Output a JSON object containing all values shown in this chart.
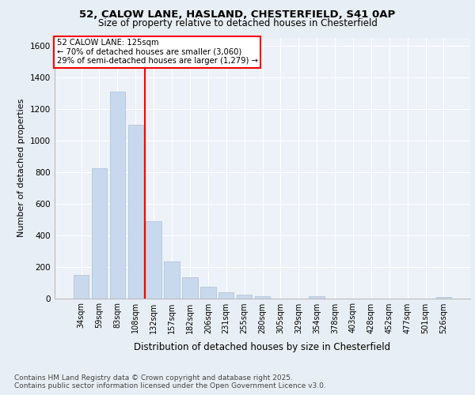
{
  "title_line1": "52, CALOW LANE, HASLAND, CHESTERFIELD, S41 0AP",
  "title_line2": "Size of property relative to detached houses in Chesterfield",
  "xlabel": "Distribution of detached houses by size in Chesterfield",
  "ylabel": "Number of detached properties",
  "categories": [
    "34sqm",
    "59sqm",
    "83sqm",
    "108sqm",
    "132sqm",
    "157sqm",
    "182sqm",
    "206sqm",
    "231sqm",
    "255sqm",
    "280sqm",
    "305sqm",
    "329sqm",
    "354sqm",
    "378sqm",
    "403sqm",
    "428sqm",
    "452sqm",
    "477sqm",
    "501sqm",
    "526sqm"
  ],
  "values": [
    150,
    825,
    1310,
    1100,
    490,
    232,
    135,
    72,
    38,
    22,
    13,
    0,
    0,
    15,
    0,
    0,
    0,
    0,
    0,
    0,
    10
  ],
  "bar_color": "#c8d9ee",
  "bar_edgecolor": "#a8c0d8",
  "vline_x_index": 4,
  "vline_color": "red",
  "annotation_title": "52 CALOW LANE: 125sqm",
  "annotation_line1": "← 70% of detached houses are smaller (3,060)",
  "annotation_line2": "29% of semi-detached houses are larger (1,279) →",
  "ylim": [
    0,
    1650
  ],
  "yticks": [
    0,
    200,
    400,
    600,
    800,
    1000,
    1200,
    1400,
    1600
  ],
  "footnote1": "Contains HM Land Registry data © Crown copyright and database right 2025.",
  "footnote2": "Contains public sector information licensed under the Open Government Licence v3.0.",
  "bg_color": "#e8eef5",
  "plot_bg_color": "#edf1f8"
}
